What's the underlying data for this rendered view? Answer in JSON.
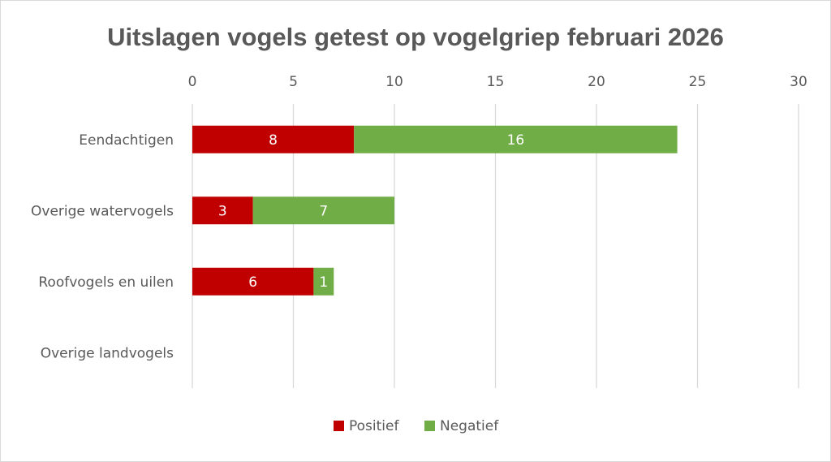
{
  "chart_data": {
    "type": "bar",
    "orientation": "horizontal",
    "stacked": true,
    "title": "Uitslagen vogels getest op vogelgriep februari 2026",
    "categories": [
      "Eendachtigen",
      "Overige watervogels",
      "Roofvogels en uilen",
      "Overige landvogels"
    ],
    "series": [
      {
        "name": "Positief",
        "values": [
          8,
          3,
          6,
          0
        ],
        "color": "#c00000"
      },
      {
        "name": "Negatief",
        "values": [
          16,
          7,
          1,
          0
        ],
        "color": "#70ad47"
      }
    ],
    "xlim": [
      0,
      30
    ],
    "xticks": [
      0,
      5,
      10,
      15,
      20,
      25,
      30
    ],
    "xaxis_position": "top",
    "grid": true,
    "legend_position": "bottom"
  }
}
